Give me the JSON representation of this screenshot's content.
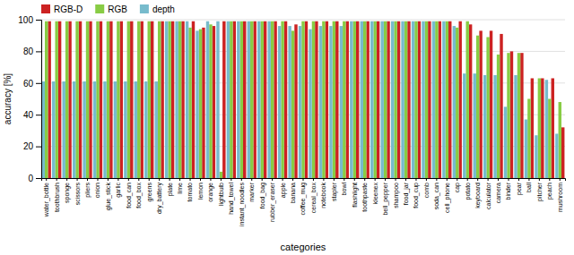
{
  "chart_data": {
    "type": "bar",
    "categories": [
      "water_bottle",
      "toothbrush",
      "sponge",
      "scissors",
      "pliers",
      "onion",
      "glue_stick",
      "garlic",
      "food_can",
      "food_box",
      "greens",
      "dry_battery",
      "plate",
      "lime",
      "tomato",
      "lemon",
      "orange",
      "lightbulb",
      "hand_towel",
      "instant_noodles",
      "marker",
      "food_bag",
      "rubber_eraser",
      "apple",
      "banana",
      "coffee_mug",
      "cereal_box",
      "notebook",
      "stapler",
      "bowl",
      "flashlight",
      "toothpaste",
      "kleenex",
      "bell_pepper",
      "shampoo",
      "food_jar",
      "food_cup",
      "comb",
      "soda_can",
      "cell_phone",
      "cap",
      "potato",
      "keyboard",
      "calculator",
      "camera",
      "binder",
      "pear",
      "ball",
      "pitcher",
      "peach",
      "mushroom"
    ],
    "series": [
      {
        "name": "RGB-D",
        "color": "#cc2222",
        "values": [
          99,
          99,
          99,
          99,
          99,
          99,
          99,
          99,
          99,
          99,
          99,
          99,
          99,
          99,
          99,
          95,
          96,
          99,
          99,
          99,
          99,
          99,
          99,
          99,
          97,
          99,
          99,
          99,
          99,
          99,
          99,
          99,
          99,
          99,
          99,
          99,
          99,
          99,
          99,
          99,
          99,
          97,
          93,
          93,
          91,
          80,
          79,
          63,
          63,
          63,
          32
        ]
      },
      {
        "name": "RGB",
        "color": "#88cc44",
        "values": [
          99,
          99,
          99,
          99,
          99,
          99,
          99,
          99,
          99,
          99,
          99,
          99,
          99,
          99,
          95,
          94,
          97,
          4,
          99,
          99,
          99,
          99,
          99,
          99,
          93,
          99,
          99,
          99,
          99,
          99,
          99,
          99,
          99,
          99,
          99,
          99,
          99,
          99,
          99,
          99,
          95,
          99,
          90,
          89,
          78,
          79,
          79,
          50,
          63,
          50,
          48
        ]
      },
      {
        "name": "depth",
        "color": "#77bbcc",
        "values": [
          61,
          61,
          61,
          61,
          61,
          61,
          61,
          61,
          61,
          61,
          61,
          61,
          99,
          99,
          99,
          93,
          99,
          99,
          99,
          99,
          99,
          99,
          99,
          96,
          96,
          96,
          94,
          96,
          96,
          96,
          99,
          99,
          99,
          99,
          99,
          99,
          99,
          99,
          99,
          99,
          96,
          66,
          66,
          65,
          65,
          45,
          65,
          37,
          27,
          62,
          28
        ]
      }
    ],
    "xlabel": "categories",
    "ylabel": "accuracy [%]",
    "ylim": [
      0,
      100
    ],
    "yticks": [
      0,
      20,
      40,
      60,
      80,
      100
    ],
    "grid": true,
    "legend": "upper-left"
  }
}
